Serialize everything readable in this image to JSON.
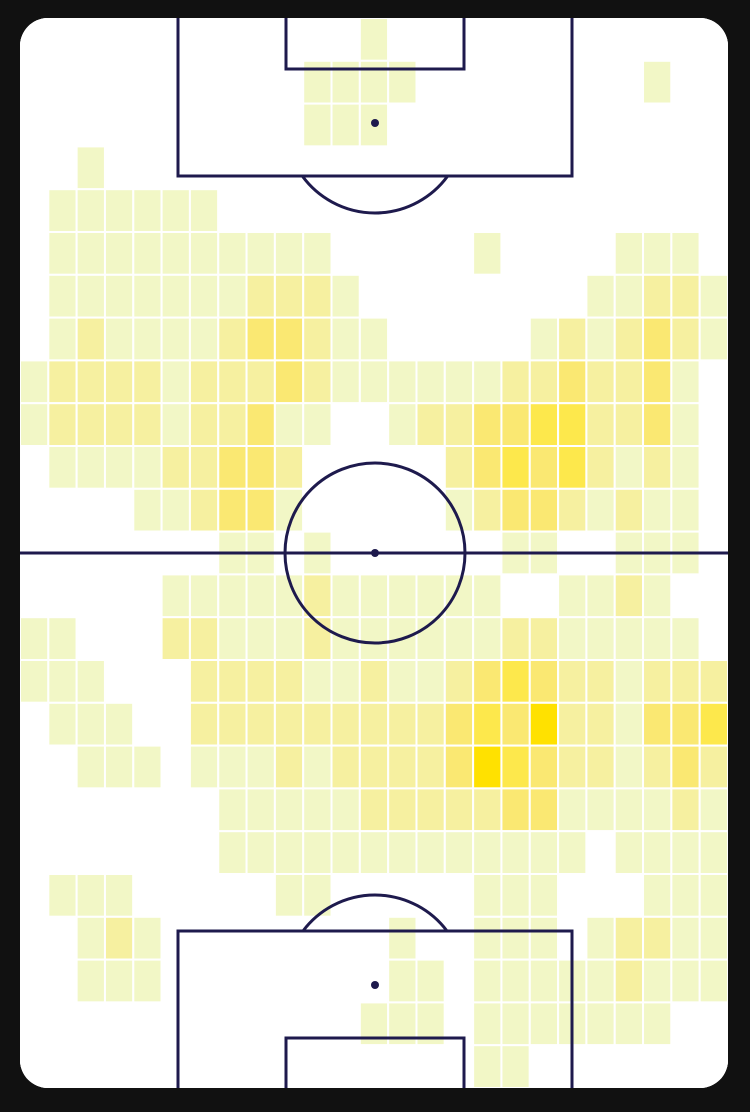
{
  "chart_data": {
    "type": "heatmap",
    "colors": [
      "#ffffff",
      "#f2f7c6",
      "#f6f0a0",
      "#fae872",
      "#fde84c",
      "#ffe100"
    ],
    "z": [
      [
        0,
        0,
        0,
        0,
        0,
        0,
        0,
        0,
        0,
        0,
        0,
        0,
        1,
        0,
        0,
        0,
        0,
        0,
        0,
        0,
        0,
        0,
        0,
        0,
        0
      ],
      [
        0,
        0,
        0,
        0,
        0,
        0,
        0,
        0,
        0,
        0,
        1,
        1,
        1,
        1,
        0,
        0,
        0,
        0,
        0,
        0,
        0,
        0,
        1,
        0,
        0
      ],
      [
        0,
        0,
        0,
        0,
        0,
        0,
        0,
        0,
        0,
        0,
        1,
        1,
        1,
        0,
        0,
        0,
        0,
        0,
        0,
        0,
        0,
        0,
        0,
        0,
        0
      ],
      [
        0,
        0,
        1,
        0,
        0,
        0,
        0,
        0,
        0,
        0,
        0,
        0,
        0,
        0,
        0,
        0,
        0,
        0,
        0,
        0,
        0,
        0,
        0,
        0,
        0
      ],
      [
        0,
        1,
        1,
        1,
        1,
        1,
        1,
        0,
        0,
        0,
        0,
        0,
        0,
        0,
        0,
        0,
        0,
        0,
        0,
        0,
        0,
        0,
        0,
        0,
        0
      ],
      [
        0,
        1,
        1,
        1,
        1,
        1,
        1,
        1,
        1,
        1,
        1,
        0,
        0,
        0,
        0,
        0,
        1,
        0,
        0,
        0,
        0,
        1,
        1,
        1,
        0
      ],
      [
        0,
        1,
        1,
        1,
        1,
        1,
        1,
        1,
        2,
        2,
        2,
        1,
        0,
        0,
        0,
        0,
        0,
        0,
        0,
        0,
        1,
        1,
        2,
        2,
        1
      ],
      [
        0,
        1,
        2,
        1,
        1,
        1,
        1,
        2,
        3,
        3,
        2,
        1,
        1,
        0,
        0,
        0,
        0,
        0,
        1,
        2,
        1,
        2,
        3,
        2,
        1
      ],
      [
        1,
        2,
        2,
        2,
        2,
        1,
        2,
        2,
        2,
        3,
        2,
        1,
        1,
        1,
        1,
        1,
        1,
        2,
        2,
        3,
        2,
        2,
        3,
        1,
        0
      ],
      [
        1,
        2,
        2,
        2,
        2,
        1,
        2,
        2,
        3,
        1,
        1,
        0,
        0,
        1,
        2,
        2,
        3,
        3,
        4,
        4,
        2,
        2,
        3,
        1,
        0
      ],
      [
        0,
        1,
        1,
        1,
        1,
        2,
        2,
        3,
        3,
        2,
        0,
        0,
        0,
        0,
        0,
        2,
        3,
        4,
        3,
        4,
        2,
        1,
        2,
        1,
        0
      ],
      [
        0,
        0,
        0,
        0,
        1,
        1,
        2,
        3,
        3,
        1,
        0,
        0,
        0,
        0,
        0,
        1,
        2,
        3,
        3,
        2,
        1,
        2,
        1,
        1,
        0
      ],
      [
        0,
        0,
        0,
        0,
        0,
        0,
        0,
        1,
        1,
        0,
        1,
        0,
        0,
        0,
        0,
        0,
        0,
        1,
        1,
        0,
        0,
        1,
        1,
        1,
        0
      ],
      [
        0,
        0,
        0,
        0,
        0,
        1,
        1,
        1,
        1,
        1,
        2,
        1,
        1,
        1,
        1,
        1,
        1,
        0,
        0,
        1,
        1,
        2,
        1,
        0,
        0
      ],
      [
        1,
        1,
        0,
        0,
        0,
        2,
        2,
        1,
        1,
        1,
        2,
        1,
        1,
        1,
        1,
        1,
        1,
        2,
        2,
        1,
        1,
        1,
        1,
        1,
        0
      ],
      [
        1,
        1,
        1,
        0,
        0,
        0,
        2,
        2,
        2,
        2,
        1,
        1,
        2,
        1,
        1,
        2,
        3,
        4,
        3,
        2,
        2,
        1,
        2,
        2,
        2
      ],
      [
        0,
        1,
        1,
        1,
        0,
        0,
        2,
        2,
        2,
        2,
        2,
        2,
        2,
        2,
        2,
        3,
        4,
        3,
        5,
        2,
        2,
        1,
        3,
        3,
        4
      ],
      [
        0,
        0,
        1,
        1,
        1,
        0,
        1,
        1,
        1,
        2,
        1,
        2,
        2,
        2,
        2,
        3,
        5,
        4,
        3,
        2,
        2,
        1,
        2,
        3,
        2
      ],
      [
        0,
        0,
        0,
        0,
        0,
        0,
        0,
        1,
        1,
        1,
        1,
        1,
        2,
        2,
        2,
        2,
        2,
        3,
        3,
        1,
        1,
        1,
        1,
        2,
        1
      ],
      [
        0,
        0,
        0,
        0,
        0,
        0,
        0,
        1,
        1,
        1,
        1,
        1,
        1,
        1,
        1,
        1,
        1,
        1,
        1,
        1,
        0,
        1,
        1,
        1,
        1
      ],
      [
        0,
        1,
        1,
        1,
        0,
        0,
        0,
        0,
        0,
        1,
        1,
        0,
        0,
        0,
        0,
        0,
        1,
        1,
        1,
        0,
        0,
        0,
        1,
        1,
        1
      ],
      [
        0,
        0,
        1,
        2,
        1,
        0,
        0,
        0,
        0,
        0,
        0,
        0,
        0,
        1,
        0,
        0,
        1,
        1,
        1,
        0,
        1,
        2,
        2,
        1,
        1
      ],
      [
        0,
        0,
        1,
        1,
        1,
        0,
        0,
        0,
        0,
        0,
        0,
        0,
        0,
        1,
        1,
        0,
        1,
        1,
        1,
        1,
        1,
        2,
        1,
        1,
        1
      ],
      [
        0,
        0,
        0,
        0,
        0,
        0,
        0,
        0,
        0,
        0,
        0,
        0,
        1,
        1,
        1,
        0,
        1,
        1,
        1,
        1,
        1,
        1,
        1,
        0,
        0
      ],
      [
        0,
        0,
        0,
        0,
        0,
        0,
        0,
        0,
        0,
        0,
        0,
        0,
        0,
        0,
        0,
        0,
        1,
        1,
        0,
        0,
        0,
        0,
        0,
        0,
        0
      ]
    ]
  }
}
